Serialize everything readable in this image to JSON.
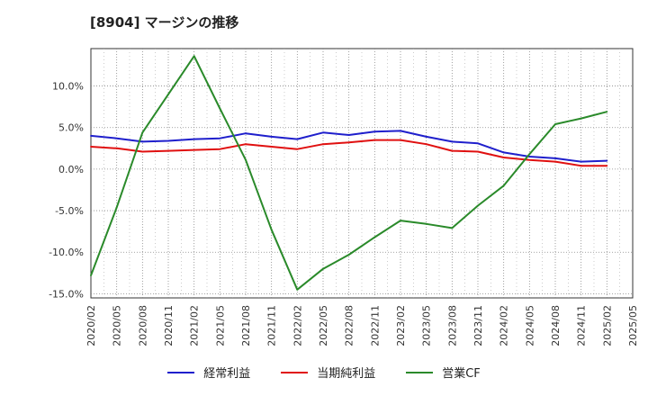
{
  "chart_data": {
    "type": "line",
    "title": "[8904]  マージンの推移",
    "x": [
      "2020/02",
      "2020/05",
      "2020/08",
      "2020/11",
      "2021/02",
      "2021/05",
      "2021/08",
      "2021/11",
      "2022/02",
      "2022/05",
      "2022/08",
      "2022/11",
      "2023/02",
      "2023/05",
      "2023/08",
      "2023/11",
      "2024/02",
      "2024/05",
      "2024/08",
      "2024/11",
      "2025/02"
    ],
    "x_ticks": [
      "2020/02",
      "2020/05",
      "2020/08",
      "2020/11",
      "2021/02",
      "2021/05",
      "2021/08",
      "2021/11",
      "2022/02",
      "2022/05",
      "2022/08",
      "2022/11",
      "2023/02",
      "2023/05",
      "2023/08",
      "2023/11",
      "2024/02",
      "2024/05",
      "2024/08",
      "2024/11",
      "2025/02",
      "2025/05"
    ],
    "y_ticks": [
      "10.0%",
      "5.0%",
      "0.0%",
      "-5.0%",
      "-10.0%",
      "-15.0%"
    ],
    "y_tick_values": [
      10,
      5,
      0,
      -5,
      -10,
      -15
    ],
    "ylim": [
      -15.5,
      14.5
    ],
    "grid": true,
    "legend_position": "bottom",
    "series": [
      {
        "name": "経常利益",
        "color": "#1f1fcc",
        "values": [
          4.0,
          3.7,
          3.3,
          3.4,
          3.6,
          3.7,
          4.3,
          3.9,
          3.6,
          4.4,
          4.1,
          4.5,
          4.6,
          3.9,
          3.3,
          3.1,
          2.0,
          1.5,
          1.3,
          0.9,
          1.0
        ]
      },
      {
        "name": "当期純利益",
        "color": "#e01010",
        "values": [
          2.7,
          2.5,
          2.1,
          2.2,
          2.3,
          2.4,
          3.0,
          2.7,
          2.4,
          3.0,
          3.2,
          3.5,
          3.5,
          3.0,
          2.2,
          2.1,
          1.4,
          1.1,
          0.9,
          0.4,
          0.4
        ]
      },
      {
        "name": "営業CF",
        "color": "#2a8a2a",
        "values": [
          -12.8,
          -4.6,
          4.4,
          9.0,
          13.6,
          7.3,
          1.1,
          -7.3,
          -14.5,
          -12.0,
          -10.3,
          -8.2,
          -6.2,
          -6.6,
          -7.1,
          -4.4,
          -2.0,
          1.8,
          5.4,
          6.1,
          6.9
        ]
      }
    ]
  }
}
